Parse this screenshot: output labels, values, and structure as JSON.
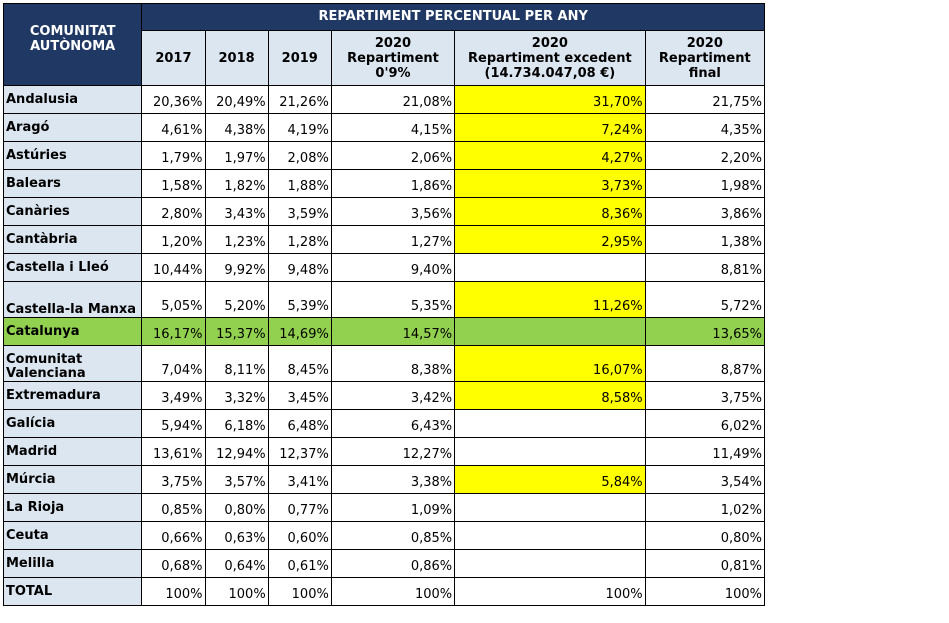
{
  "header": {
    "region_col": "COMUNITAT AUTÒNOMA",
    "group_title": "REPARTIMENT PERCENTUAL PER ANY",
    "columns": [
      [
        "2017"
      ],
      [
        "2018"
      ],
      [
        "2019"
      ],
      [
        "2020",
        "Repartiment",
        "0'9%"
      ],
      [
        "2020",
        "Repartiment excedent",
        "(14.734.047,08 €)"
      ],
      [
        "2020",
        "Repartiment",
        "final"
      ]
    ]
  },
  "colors": {
    "header_bg": "#1f3864",
    "label_bg": "#dce6f1",
    "highlight_yellow": "#ffff00",
    "highlight_green": "#92d050"
  },
  "rows": [
    {
      "name": "Andalusia",
      "v": [
        "20,36%",
        "20,49%",
        "21,26%",
        "21,08%",
        "31,70%",
        "21,75%"
      ]
    },
    {
      "name": "Aragó",
      "v": [
        "4,61%",
        "4,38%",
        "4,19%",
        "4,15%",
        "7,24%",
        "4,35%"
      ]
    },
    {
      "name": "Astúries",
      "v": [
        "1,79%",
        "1,97%",
        "2,08%",
        "2,06%",
        "4,27%",
        "2,20%"
      ]
    },
    {
      "name": "Balears",
      "v": [
        "1,58%",
        "1,82%",
        "1,88%",
        "1,86%",
        "3,73%",
        "1,98%"
      ]
    },
    {
      "name": "Canàries",
      "v": [
        "2,80%",
        "3,43%",
        "3,59%",
        "3,56%",
        "8,36%",
        "3,86%"
      ]
    },
    {
      "name": "Cantàbria",
      "v": [
        "1,20%",
        "1,23%",
        "1,28%",
        "1,27%",
        "2,95%",
        "1,38%"
      ]
    },
    {
      "name": "Castella i Lleó",
      "v": [
        "10,44%",
        "9,92%",
        "9,48%",
        "9,40%",
        "",
        "8,81%"
      ]
    },
    {
      "name": "Castella-la Manxa",
      "v": [
        "5,05%",
        "5,20%",
        "5,39%",
        "5,35%",
        "11,26%",
        "5,72%"
      ]
    },
    {
      "name": "Catalunya",
      "v": [
        "16,17%",
        "15,37%",
        "14,69%",
        "14,57%",
        "",
        "13,65%"
      ]
    },
    {
      "name": "Comunitat Valenciana",
      "v": [
        "7,04%",
        "8,11%",
        "8,45%",
        "8,38%",
        "16,07%",
        "8,87%"
      ]
    },
    {
      "name": "Extremadura",
      "v": [
        "3,49%",
        "3,32%",
        "3,45%",
        "3,42%",
        "8,58%",
        "3,75%"
      ]
    },
    {
      "name": "Galícia",
      "v": [
        "5,94%",
        "6,18%",
        "6,48%",
        "6,43%",
        "",
        "6,02%"
      ]
    },
    {
      "name": "Madrid",
      "v": [
        "13,61%",
        "12,94%",
        "12,37%",
        "12,27%",
        "",
        "11,49%"
      ]
    },
    {
      "name": "Múrcia",
      "v": [
        "3,75%",
        "3,57%",
        "3,41%",
        "3,38%",
        "5,84%",
        "3,54%"
      ]
    },
    {
      "name": "La Rioja",
      "v": [
        "0,85%",
        "0,80%",
        "0,77%",
        "1,09%",
        "",
        "1,02%"
      ]
    },
    {
      "name": "Ceuta",
      "v": [
        "0,66%",
        "0,63%",
        "0,60%",
        "0,85%",
        "",
        "0,80%"
      ]
    },
    {
      "name": "Melilla",
      "v": [
        "0,68%",
        "0,64%",
        "0,61%",
        "0,86%",
        "",
        "0,81%"
      ]
    },
    {
      "name": "TOTAL",
      "v": [
        "100%",
        "100%",
        "100%",
        "100%",
        "100%",
        "100%"
      ]
    }
  ]
}
